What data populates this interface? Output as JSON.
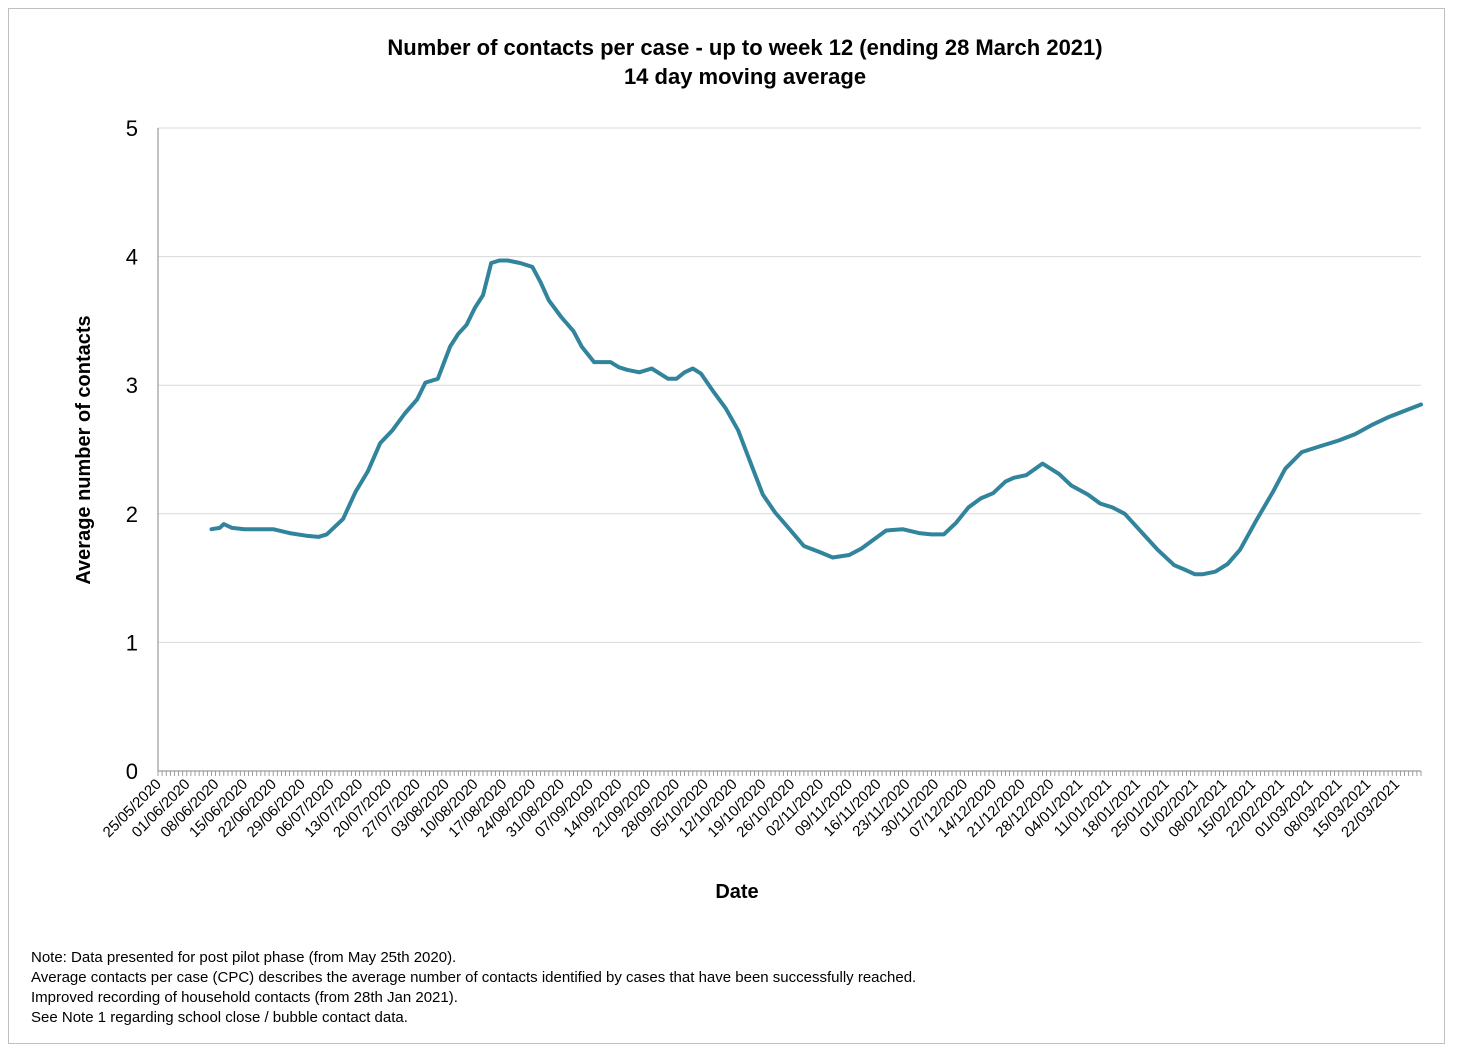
{
  "chart_data": {
    "type": "line",
    "title": "Number of contacts per case - up to week 12 (ending 28 March 2021)",
    "subtitle": "14 day moving average",
    "xlabel": "Date",
    "ylabel": "Average number of contacts",
    "ylim": [
      0,
      5
    ],
    "yticks": [
      "0",
      "1",
      "2",
      "3",
      "4",
      "5"
    ],
    "grid": true,
    "legend": "none",
    "line_color": "#31849b",
    "x_tick_labels": [
      "25/05/2020",
      "01/06/2020",
      "08/06/2020",
      "15/06/2020",
      "22/06/2020",
      "29/06/2020",
      "06/07/2020",
      "13/07/2020",
      "20/07/2020",
      "27/07/2020",
      "03/08/2020",
      "10/08/2020",
      "17/08/2020",
      "24/08/2020",
      "31/08/2020",
      "07/09/2020",
      "14/09/2020",
      "21/09/2020",
      "28/09/2020",
      "05/10/2020",
      "12/10/2020",
      "19/10/2020",
      "26/10/2020",
      "02/11/2020",
      "09/11/2020",
      "16/11/2020",
      "23/11/2020",
      "30/11/2020",
      "07/12/2020",
      "14/12/2020",
      "21/12/2020",
      "28/12/2020",
      "04/01/2021",
      "11/01/2021",
      "18/01/2021",
      "25/01/2021",
      "01/02/2021",
      "08/02/2021",
      "15/02/2021",
      "22/02/2021",
      "01/03/2021",
      "08/03/2021",
      "15/03/2021",
      "22/03/2021"
    ],
    "series": [
      {
        "x": [
          "2020-06-07",
          "2020-06-09",
          "2020-06-10",
          "2020-06-12",
          "2020-06-15",
          "2020-06-18",
          "2020-06-22",
          "2020-06-26",
          "2020-06-30",
          "2020-07-03",
          "2020-07-05",
          "2020-07-07",
          "2020-07-09",
          "2020-07-12",
          "2020-07-15",
          "2020-07-18",
          "2020-07-21",
          "2020-07-24",
          "2020-07-27",
          "2020-07-29",
          "2020-08-01",
          "2020-08-04",
          "2020-08-06",
          "2020-08-08",
          "2020-08-10",
          "2020-08-12",
          "2020-08-14",
          "2020-08-16",
          "2020-08-18",
          "2020-08-21",
          "2020-08-24",
          "2020-08-26",
          "2020-08-28",
          "2020-08-31",
          "2020-09-03",
          "2020-09-05",
          "2020-09-08",
          "2020-09-12",
          "2020-09-14",
          "2020-09-16",
          "2020-09-19",
          "2020-09-22",
          "2020-09-26",
          "2020-09-28",
          "2020-09-30",
          "2020-10-02",
          "2020-10-04",
          "2020-10-07",
          "2020-10-10",
          "2020-10-13",
          "2020-10-16",
          "2020-10-19",
          "2020-10-22",
          "2020-10-25",
          "2020-10-29",
          "2020-11-02",
          "2020-11-05",
          "2020-11-09",
          "2020-11-12",
          "2020-11-15",
          "2020-11-18",
          "2020-11-22",
          "2020-11-26",
          "2020-11-29",
          "2020-12-02",
          "2020-12-05",
          "2020-12-08",
          "2020-12-11",
          "2020-12-14",
          "2020-12-17",
          "2020-12-19",
          "2020-12-22",
          "2020-12-26",
          "2020-12-30",
          "2021-01-02",
          "2021-01-06",
          "2021-01-09",
          "2021-01-12",
          "2021-01-15",
          "2021-01-19",
          "2021-01-23",
          "2021-01-27",
          "2021-01-30",
          "2021-02-01",
          "2021-02-03",
          "2021-02-06",
          "2021-02-09",
          "2021-02-12",
          "2021-02-16",
          "2021-02-20",
          "2021-02-23",
          "2021-02-27",
          "2021-03-03",
          "2021-03-08",
          "2021-03-12",
          "2021-03-16",
          "2021-03-20",
          "2021-03-24",
          "2021-03-28"
        ],
        "y": [
          1.88,
          1.89,
          1.92,
          1.89,
          1.88,
          1.88,
          1.88,
          1.85,
          1.83,
          1.82,
          1.84,
          1.9,
          1.96,
          2.17,
          2.33,
          2.55,
          2.65,
          2.78,
          2.89,
          3.02,
          3.05,
          3.3,
          3.4,
          3.47,
          3.6,
          3.7,
          3.95,
          3.97,
          3.97,
          3.95,
          3.92,
          3.8,
          3.66,
          3.53,
          3.42,
          3.3,
          3.18,
          3.18,
          3.14,
          3.12,
          3.1,
          3.13,
          3.05,
          3.05,
          3.1,
          3.13,
          3.09,
          2.95,
          2.82,
          2.65,
          2.4,
          2.15,
          2.01,
          1.9,
          1.75,
          1.7,
          1.66,
          1.68,
          1.73,
          1.8,
          1.87,
          1.88,
          1.85,
          1.84,
          1.84,
          1.93,
          2.05,
          2.12,
          2.16,
          2.25,
          2.28,
          2.3,
          2.39,
          2.31,
          2.22,
          2.15,
          2.08,
          2.05,
          2.0,
          1.86,
          1.72,
          1.6,
          1.56,
          1.53,
          1.53,
          1.55,
          1.61,
          1.72,
          1.95,
          2.17,
          2.35,
          2.48,
          2.52,
          2.57,
          2.62,
          2.69,
          2.75,
          2.8,
          2.85
        ]
      }
    ]
  },
  "notes": [
    "Note: Data presented  for post pilot phase (from May 25th 2020).",
    "Average contacts per case (CPC) describes the average number of contacts identified by cases that have been successfully reached.",
    "Improved recording of household contacts (from 28th Jan 2021).",
    "See Note 1 regarding school close / bubble contact data."
  ]
}
